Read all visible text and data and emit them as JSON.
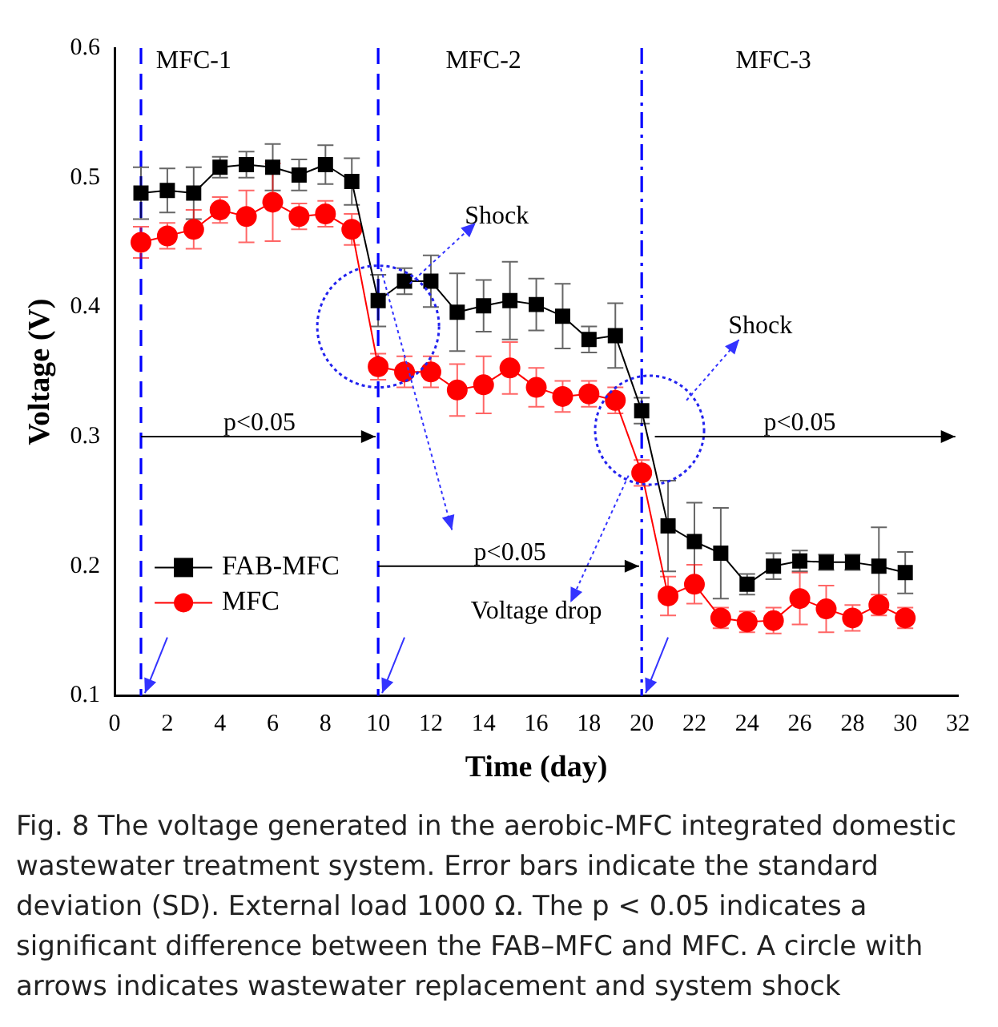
{
  "chart_data": {
    "type": "line",
    "xlabel": "Time (day)",
    "ylabel": "Voltage (V)",
    "xlim": [
      0,
      32
    ],
    "xticks": [
      0,
      2,
      4,
      6,
      8,
      10,
      12,
      14,
      16,
      18,
      20,
      22,
      24,
      26,
      28,
      30,
      32
    ],
    "ylim": [
      0.1,
      0.6
    ],
    "yticks": [
      0.1,
      0.2,
      0.3,
      0.4,
      0.5,
      0.6
    ],
    "x": [
      1,
      2,
      3,
      4,
      5,
      6,
      7,
      8,
      9,
      10,
      11,
      12,
      13,
      14,
      15,
      16,
      17,
      18,
      19,
      20,
      21,
      22,
      23,
      24,
      25,
      26,
      27,
      28,
      29,
      30
    ],
    "series": [
      {
        "name": "FAB-MFC",
        "color": "#000000",
        "marker": "square",
        "values": [
          0.488,
          0.49,
          0.488,
          0.508,
          0.51,
          0.508,
          0.502,
          0.51,
          0.497,
          0.405,
          0.42,
          0.42,
          0.396,
          0.401,
          0.405,
          0.402,
          0.393,
          0.375,
          0.378,
          0.32,
          0.231,
          0.219,
          0.21,
          0.186,
          0.2,
          0.204,
          0.203,
          0.203,
          0.2,
          0.195
        ],
        "errors": [
          0.02,
          0.017,
          0.02,
          0.008,
          0.01,
          0.018,
          0.012,
          0.015,
          0.018,
          0.02,
          0.01,
          0.02,
          0.03,
          0.02,
          0.03,
          0.02,
          0.025,
          0.01,
          0.025,
          0.01,
          0.035,
          0.03,
          0.035,
          0.008,
          0.01,
          0.008,
          0.006,
          0.006,
          0.03,
          0.016
        ]
      },
      {
        "name": "MFC",
        "color": "#ff0000",
        "marker": "circle",
        "values": [
          0.45,
          0.455,
          0.46,
          0.475,
          0.47,
          0.481,
          0.47,
          0.472,
          0.46,
          0.354,
          0.35,
          0.35,
          0.336,
          0.34,
          0.353,
          0.338,
          0.331,
          0.333,
          0.328,
          0.272,
          0.177,
          0.186,
          0.16,
          0.157,
          0.158,
          0.175,
          0.167,
          0.16,
          0.17,
          0.16
        ],
        "errors": [
          0.012,
          0.01,
          0.015,
          0.01,
          0.02,
          0.03,
          0.01,
          0.01,
          0.012,
          0.01,
          0.012,
          0.012,
          0.02,
          0.022,
          0.02,
          0.015,
          0.012,
          0.01,
          0.01,
          0.01,
          0.015,
          0.015,
          0.008,
          0.008,
          0.01,
          0.02,
          0.018,
          0.01,
          0.008,
          0.008
        ]
      }
    ],
    "ref_lines": [
      {
        "axis": "x",
        "value": 1,
        "color": "#0000ff",
        "line_style": "dashed"
      },
      {
        "axis": "x",
        "value": 10,
        "color": "#0000ff",
        "line_style": "dashed"
      },
      {
        "axis": "x",
        "value": 20,
        "color": "#0000ff",
        "line_style": "dashdot"
      }
    ],
    "annotations": [
      "MFC-1",
      "MFC-2",
      "MFC-3",
      "Shock",
      "Shock",
      "p<0.05",
      "p<0.05",
      "p<0.05",
      "Voltage drop",
      "Fig. 8 The voltage generated in the aerobic-MFC integrated domestic wastewater treatment system. Error bars indicate the standard deviation (SD). External load 1000 Ω. The p < 0.05 indicates a significant difference between the FAB–MFC and MFC. A circle with arrows indicates wastewater replacement and system shock"
    ],
    "legend": "bottom left",
    "line_style": "solid",
    "grid": false
  }
}
